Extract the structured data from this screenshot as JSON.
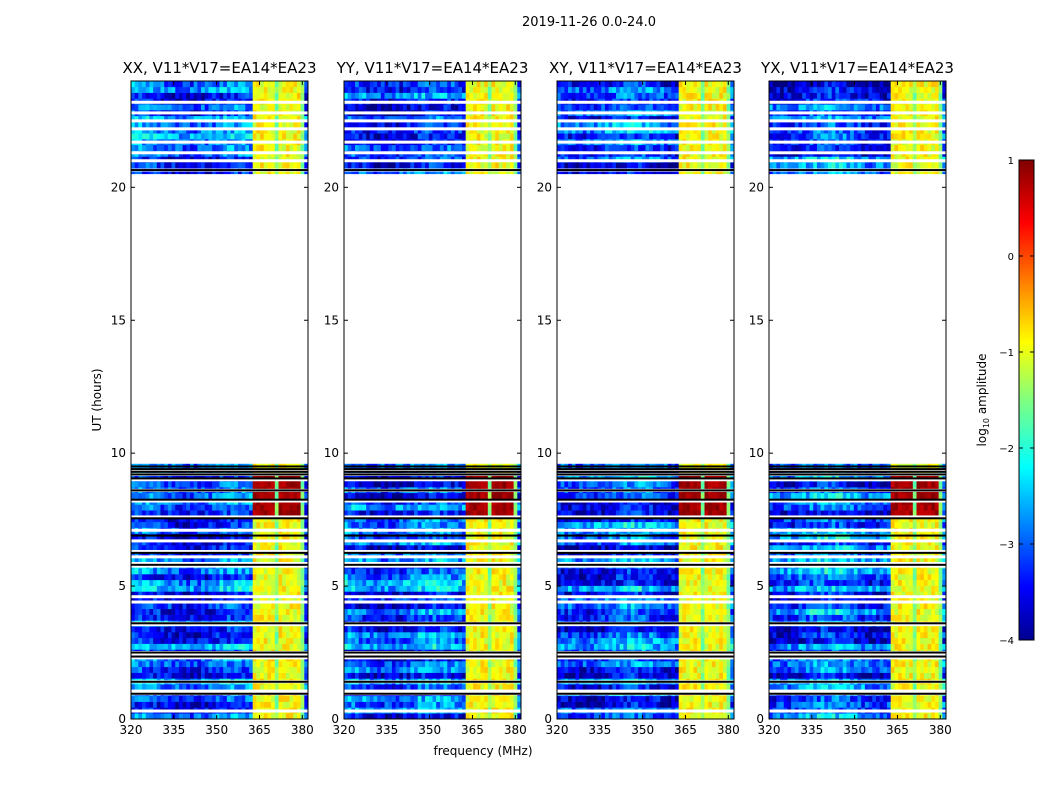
{
  "figure": {
    "suptitle": "2019-11-26 0.0-24.0",
    "xlabel": "frequency (MHz)",
    "ylabel": "UT (hours)"
  },
  "chart_data": {
    "type": "heatmap",
    "title": "2019-11-26 0.0-24.0",
    "xlabel": "frequency (MHz)",
    "ylabel": "UT (hours)",
    "xlim": [
      320,
      382
    ],
    "ylim": [
      0,
      24
    ],
    "xticks": [
      320,
      335,
      350,
      365,
      380
    ],
    "yticks": [
      0,
      5,
      10,
      15,
      20
    ],
    "panels": [
      {
        "title": "XX, V11*V17=EA14*EA23",
        "polarization": "XX",
        "show_yticklabels": true
      },
      {
        "title": "YY, V11*V17=EA14*EA23",
        "polarization": "YY",
        "show_yticklabels": true
      },
      {
        "title": "XY, V11*V17=EA14*EA23",
        "polarization": "XY",
        "show_yticklabels": true
      },
      {
        "title": "YX, V11*V17=EA14*EA23",
        "polarization": "YX",
        "show_yticklabels": true
      }
    ],
    "data_coverage_ut": [
      [
        0.0,
        9.5
      ],
      [
        20.6,
        24.0
      ]
    ],
    "gap_ut": [
      9.5,
      20.6
    ],
    "rfi_band_mhz": [
      362,
      381
    ],
    "rfi_channels_mhz": [
      [
        362.5,
        366.5
      ],
      [
        367,
        371
      ],
      [
        371.5,
        375.5
      ],
      [
        376,
        380
      ]
    ],
    "rfi_strong_ut": [
      7.6,
      9.2
    ],
    "blank_rows_ut": [
      0.3,
      0.95,
      1.0,
      1.05,
      1.4,
      2.3,
      2.4,
      2.5,
      3.55,
      3.6,
      4.4,
      4.6,
      5.75,
      5.85,
      6.1,
      6.3,
      6.7,
      7.1,
      7.6,
      8.2,
      8.6,
      9.0,
      9.2,
      9.35,
      20.65,
      21.0,
      21.3,
      21.7,
      22.2,
      22.5,
      22.8,
      23.2
    ],
    "black_rows_ut": [
      0.95,
      1.4,
      2.35,
      2.5,
      3.6,
      5.8,
      6.25,
      6.9,
      7.55,
      8.25,
      8.6,
      9.05,
      9.2,
      9.3,
      9.4,
      9.5,
      20.65
    ],
    "colorbar": {
      "label": "log",
      "label_sub": "10",
      "label_suffix": " amplitude",
      "range": [
        -4,
        1
      ],
      "ticks": [
        1,
        0,
        -1,
        -2,
        -3,
        -4
      ],
      "tick_labels": [
        "1",
        "0",
        "−1",
        "−2",
        "−3",
        "−4"
      ],
      "colormap": "jet"
    }
  }
}
